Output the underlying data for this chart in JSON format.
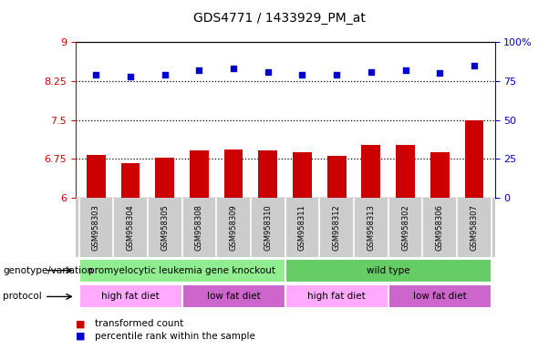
{
  "title": "GDS4771 / 1433929_PM_at",
  "samples": [
    "GSM958303",
    "GSM958304",
    "GSM958305",
    "GSM958308",
    "GSM958309",
    "GSM958310",
    "GSM958311",
    "GSM958312",
    "GSM958313",
    "GSM958302",
    "GSM958306",
    "GSM958307"
  ],
  "bar_values": [
    6.82,
    6.67,
    6.78,
    6.91,
    6.93,
    6.91,
    6.88,
    6.81,
    7.01,
    7.02,
    6.88,
    7.5
  ],
  "dot_values": [
    79,
    78,
    79,
    82,
    83,
    81,
    79,
    79,
    81,
    82,
    80,
    85
  ],
  "ylim_left": [
    6,
    9
  ],
  "ylim_right": [
    0,
    100
  ],
  "yticks_left": [
    6,
    6.75,
    7.5,
    8.25,
    9
  ],
  "yticks_right": [
    0,
    25,
    50,
    75,
    100
  ],
  "hlines": [
    6.75,
    7.5,
    8.25
  ],
  "bar_color": "#cc0000",
  "dot_color": "#0000cc",
  "bar_bottom": 6,
  "genotype_groups": [
    {
      "label": "promyelocytic leukemia gene knockout",
      "start": 0,
      "end": 6,
      "color": "#90ee90"
    },
    {
      "label": "wild type",
      "start": 6,
      "end": 12,
      "color": "#66cc66"
    }
  ],
  "protocol_groups": [
    {
      "label": "high fat diet",
      "start": 0,
      "end": 3,
      "color": "#ffaaff"
    },
    {
      "label": "low fat diet",
      "start": 3,
      "end": 6,
      "color": "#cc66cc"
    },
    {
      "label": "high fat diet",
      "start": 6,
      "end": 9,
      "color": "#ffaaff"
    },
    {
      "label": "low fat diet",
      "start": 9,
      "end": 12,
      "color": "#cc66cc"
    }
  ],
  "legend_items": [
    {
      "label": "transformed count",
      "color": "#cc0000"
    },
    {
      "label": "percentile rank within the sample",
      "color": "#0000cc"
    }
  ],
  "genotype_label": "genotype/variation",
  "protocol_label": "protocol",
  "tick_label_color_left": "#cc0000",
  "tick_label_color_right": "#0000cc",
  "sample_bg_color": "#cccccc",
  "sample_sep_color": "#ffffff"
}
